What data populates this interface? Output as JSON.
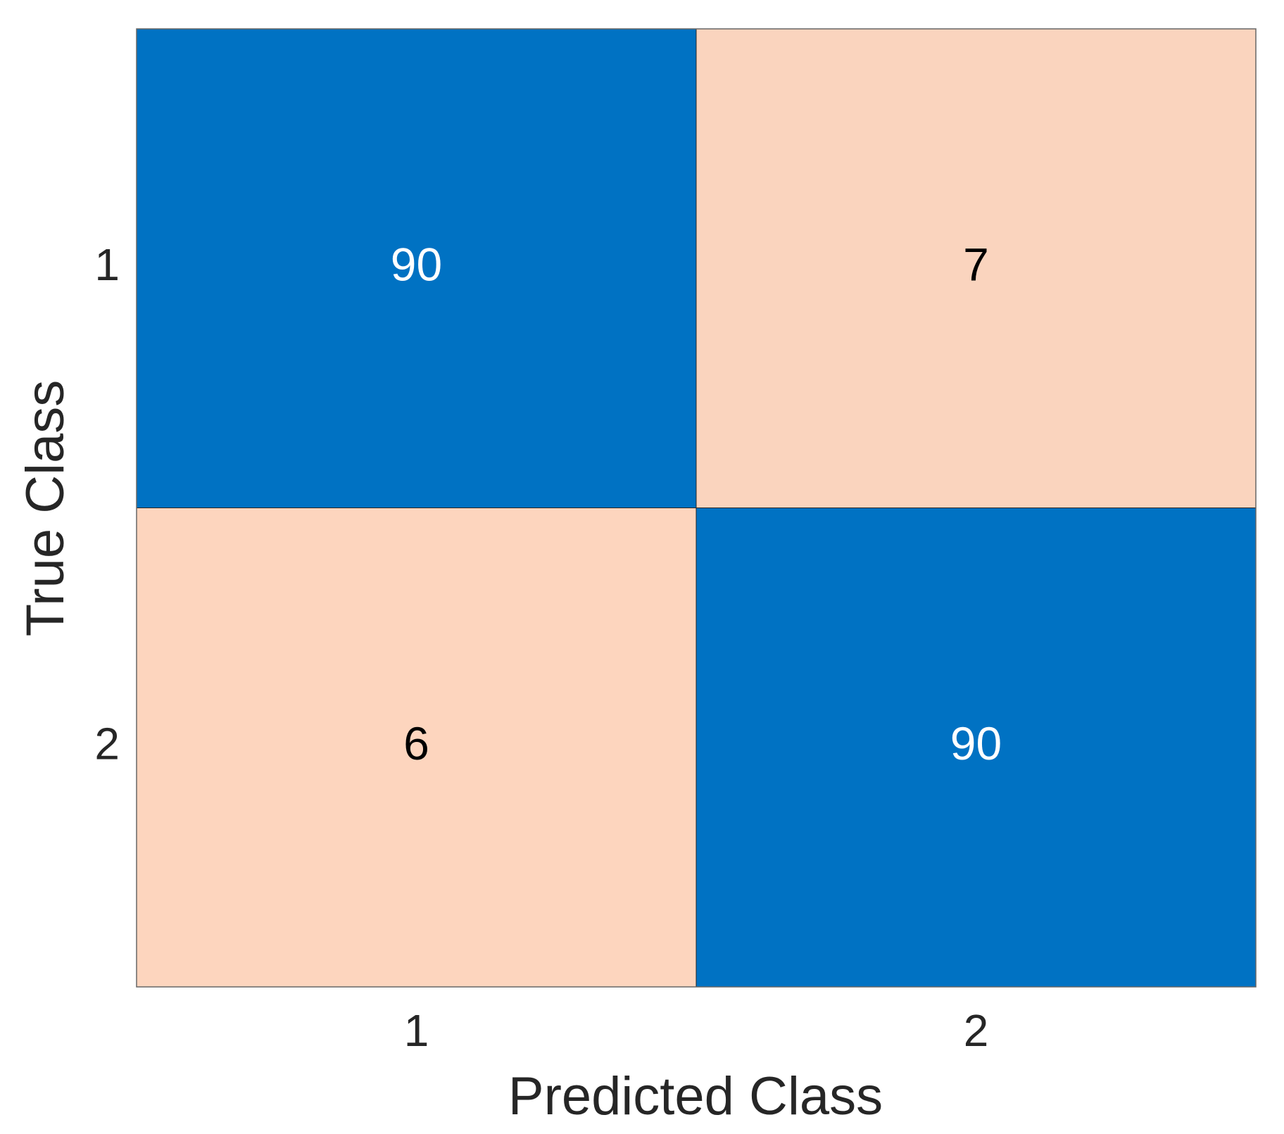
{
  "chart_data": {
    "type": "heatmap",
    "x_categories": [
      "1",
      "2"
    ],
    "y_categories": [
      "1",
      "2"
    ],
    "values": [
      [
        90,
        7
      ],
      [
        6,
        90
      ]
    ],
    "xlabel": "Predicted Class",
    "ylabel": "True Class",
    "low_color": "#fdd5be",
    "high_color": "#0072c3"
  }
}
